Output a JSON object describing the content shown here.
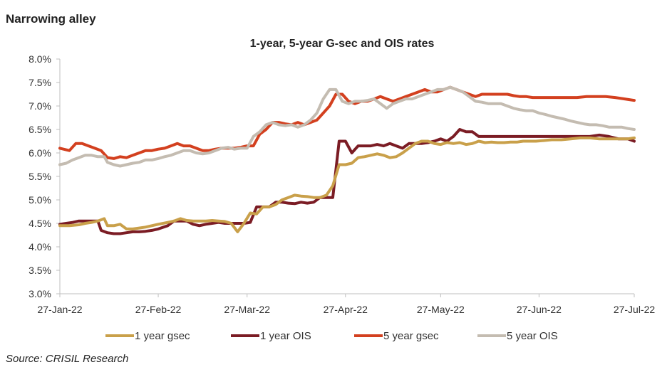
{
  "heading": "Narrowing alley",
  "source": "Source: CRISIL Research",
  "chart_data": {
    "type": "line",
    "title": "1-year, 5-year G-sec and OIS rates",
    "xlabel": "",
    "ylabel": "",
    "x_tick_labels": [
      "27-Jan-22",
      "27-Feb-22",
      "27-Mar-22",
      "27-Apr-22",
      "27-May-22",
      "27-Jun-22",
      "27-Jul-22"
    ],
    "x_tick_days": [
      0,
      31,
      59,
      90,
      120,
      151,
      181
    ],
    "xlim": [
      0,
      181
    ],
    "ylim": [
      3.0,
      8.0
    ],
    "y_tick_values": [
      3.0,
      3.5,
      4.0,
      4.5,
      5.0,
      5.5,
      6.0,
      6.5,
      7.0,
      7.5,
      8.0
    ],
    "y_tick_labels": [
      "3.0%",
      "3.5%",
      "4.0%",
      "4.5%",
      "5.0%",
      "5.5%",
      "6.0%",
      "6.5%",
      "7.0%",
      "7.5%",
      "8.0%"
    ],
    "grid": false,
    "legend_position": "bottom",
    "series": [
      {
        "name": "1 year gsec",
        "color": "#c9a04a",
        "x": [
          0,
          3,
          6,
          8,
          10,
          12,
          14,
          15,
          17,
          19,
          21,
          23,
          25,
          27,
          29,
          31,
          34,
          36,
          38,
          40,
          42,
          44,
          46,
          48,
          50,
          52,
          54,
          56,
          58,
          60,
          62,
          64,
          66,
          68,
          70,
          72,
          74,
          76,
          78,
          80,
          82,
          84,
          86,
          88,
          90,
          92,
          94,
          96,
          98,
          100,
          102,
          104,
          106,
          108,
          110,
          112,
          114,
          116,
          118,
          120,
          122,
          124,
          126,
          128,
          130,
          132,
          134,
          136,
          138,
          140,
          142,
          144,
          146,
          148,
          150,
          152,
          155,
          158,
          161,
          164,
          167,
          170,
          173,
          176,
          179,
          181
        ],
        "values": [
          4.45,
          4.45,
          4.47,
          4.5,
          4.52,
          4.55,
          4.6,
          4.45,
          4.45,
          4.48,
          4.38,
          4.38,
          4.4,
          4.42,
          4.45,
          4.48,
          4.52,
          4.55,
          4.6,
          4.56,
          4.55,
          4.55,
          4.55,
          4.56,
          4.55,
          4.54,
          4.5,
          4.32,
          4.5,
          4.72,
          4.7,
          4.85,
          4.85,
          4.9,
          5.0,
          5.05,
          5.1,
          5.08,
          5.07,
          5.05,
          5.05,
          5.1,
          5.3,
          5.75,
          5.75,
          5.78,
          5.9,
          5.92,
          5.95,
          5.98,
          5.95,
          5.9,
          5.92,
          6.0,
          6.1,
          6.2,
          6.25,
          6.25,
          6.2,
          6.18,
          6.22,
          6.2,
          6.22,
          6.18,
          6.2,
          6.25,
          6.22,
          6.23,
          6.22,
          6.22,
          6.23,
          6.23,
          6.25,
          6.25,
          6.25,
          6.26,
          6.28,
          6.28,
          6.3,
          6.32,
          6.32,
          6.3,
          6.3,
          6.3,
          6.3,
          6.32
        ]
      },
      {
        "name": "1 year OIS",
        "color": "#7b1c24",
        "x": [
          0,
          2,
          4,
          6,
          8,
          10,
          12,
          13,
          15,
          17,
          19,
          21,
          23,
          25,
          27,
          29,
          31,
          34,
          36,
          38,
          40,
          42,
          44,
          46,
          48,
          50,
          52,
          54,
          56,
          58,
          60,
          62,
          64,
          66,
          68,
          70,
          72,
          74,
          76,
          78,
          80,
          82,
          84,
          86,
          88,
          90,
          92,
          94,
          96,
          98,
          100,
          102,
          104,
          106,
          108,
          110,
          112,
          114,
          116,
          118,
          120,
          122,
          124,
          126,
          128,
          130,
          132,
          134,
          136,
          138,
          140,
          142,
          144,
          146,
          148,
          150,
          152,
          155,
          158,
          161,
          164,
          167,
          170,
          173,
          176,
          179,
          181
        ],
        "values": [
          4.48,
          4.5,
          4.52,
          4.55,
          4.55,
          4.55,
          4.55,
          4.35,
          4.3,
          4.28,
          4.28,
          4.3,
          4.32,
          4.32,
          4.33,
          4.35,
          4.38,
          4.45,
          4.55,
          4.55,
          4.55,
          4.48,
          4.45,
          4.48,
          4.5,
          4.52,
          4.5,
          4.5,
          4.5,
          4.5,
          4.52,
          4.85,
          4.85,
          4.85,
          4.95,
          4.95,
          4.93,
          4.92,
          4.95,
          4.93,
          4.95,
          5.05,
          5.05,
          5.05,
          6.25,
          6.25,
          6.0,
          6.15,
          6.15,
          6.15,
          6.18,
          6.15,
          6.2,
          6.15,
          6.1,
          6.2,
          6.2,
          6.2,
          6.22,
          6.25,
          6.3,
          6.25,
          6.35,
          6.5,
          6.45,
          6.45,
          6.35,
          6.35,
          6.35,
          6.35,
          6.35,
          6.35,
          6.35,
          6.35,
          6.35,
          6.35,
          6.35,
          6.35,
          6.35,
          6.35,
          6.35,
          6.35,
          6.38,
          6.35,
          6.3,
          6.3,
          6.25
        ]
      },
      {
        "name": "5 year gsec",
        "color": "#d3401f",
        "x": [
          0,
          3,
          5,
          7,
          9,
          11,
          13,
          15,
          17,
          19,
          21,
          23,
          25,
          27,
          29,
          31,
          33,
          35,
          37,
          39,
          41,
          43,
          45,
          47,
          49,
          51,
          53,
          55,
          57,
          59,
          61,
          63,
          65,
          67,
          69,
          71,
          73,
          75,
          77,
          79,
          81,
          83,
          85,
          87,
          89,
          91,
          93,
          95,
          97,
          99,
          101,
          103,
          105,
          107,
          109,
          111,
          113,
          115,
          117,
          119,
          121,
          123,
          125,
          127,
          129,
          131,
          133,
          135,
          137,
          139,
          141,
          143,
          145,
          147,
          149,
          151,
          154,
          157,
          160,
          163,
          166,
          169,
          172,
          175,
          178,
          181
        ],
        "values": [
          6.1,
          6.05,
          6.2,
          6.2,
          6.15,
          6.1,
          6.05,
          5.9,
          5.88,
          5.92,
          5.9,
          5.95,
          6.0,
          6.05,
          6.05,
          6.08,
          6.1,
          6.15,
          6.2,
          6.15,
          6.15,
          6.1,
          6.05,
          6.05,
          6.08,
          6.1,
          6.1,
          6.1,
          6.12,
          6.15,
          6.15,
          6.4,
          6.5,
          6.65,
          6.65,
          6.62,
          6.6,
          6.65,
          6.6,
          6.65,
          6.7,
          6.85,
          7.0,
          7.25,
          7.25,
          7.1,
          7.05,
          7.1,
          7.1,
          7.15,
          7.2,
          7.15,
          7.1,
          7.15,
          7.2,
          7.25,
          7.3,
          7.35,
          7.3,
          7.3,
          7.35,
          7.4,
          7.35,
          7.3,
          7.25,
          7.2,
          7.25,
          7.25,
          7.25,
          7.25,
          7.25,
          7.22,
          7.2,
          7.2,
          7.18,
          7.18,
          7.18,
          7.18,
          7.18,
          7.18,
          7.2,
          7.2,
          7.2,
          7.18,
          7.15,
          7.12
        ]
      },
      {
        "name": "5 year OIS",
        "color": "#c4bcb1",
        "x": [
          0,
          2,
          4,
          6,
          8,
          10,
          12,
          14,
          15,
          17,
          19,
          21,
          23,
          25,
          27,
          29,
          31,
          33,
          35,
          37,
          39,
          41,
          43,
          45,
          47,
          49,
          51,
          53,
          55,
          57,
          59,
          61,
          63,
          65,
          67,
          69,
          71,
          73,
          75,
          77,
          79,
          81,
          83,
          85,
          87,
          89,
          91,
          93,
          95,
          97,
          99,
          101,
          103,
          105,
          107,
          109,
          111,
          113,
          115,
          117,
          119,
          121,
          123,
          125,
          127,
          129,
          131,
          133,
          135,
          137,
          139,
          141,
          143,
          145,
          147,
          149,
          151,
          153,
          155,
          157,
          159,
          161,
          163,
          165,
          167,
          169,
          171,
          173,
          175,
          177,
          179,
          181
        ],
        "values": [
          5.75,
          5.78,
          5.85,
          5.9,
          5.95,
          5.95,
          5.92,
          5.92,
          5.8,
          5.75,
          5.72,
          5.75,
          5.78,
          5.8,
          5.85,
          5.85,
          5.88,
          5.92,
          5.95,
          6.0,
          6.05,
          6.05,
          6.0,
          5.98,
          6.0,
          6.05,
          6.1,
          6.12,
          6.08,
          6.1,
          6.1,
          6.35,
          6.45,
          6.6,
          6.65,
          6.6,
          6.58,
          6.6,
          6.55,
          6.6,
          6.7,
          6.85,
          7.15,
          7.35,
          7.35,
          7.1,
          7.05,
          7.1,
          7.1,
          7.12,
          7.15,
          7.05,
          6.95,
          7.05,
          7.1,
          7.15,
          7.15,
          7.2,
          7.25,
          7.3,
          7.35,
          7.35,
          7.4,
          7.35,
          7.3,
          7.2,
          7.1,
          7.08,
          7.05,
          7.05,
          7.05,
          7.0,
          6.95,
          6.92,
          6.9,
          6.9,
          6.85,
          6.82,
          6.78,
          6.75,
          6.72,
          6.68,
          6.65,
          6.62,
          6.6,
          6.6,
          6.58,
          6.55,
          6.55,
          6.55,
          6.52,
          6.5
        ]
      }
    ]
  }
}
